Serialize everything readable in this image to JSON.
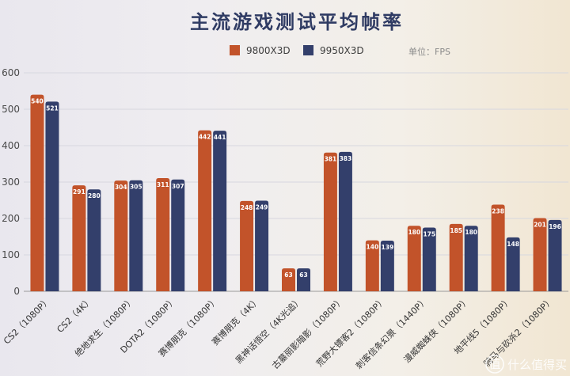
{
  "chart_data": {
    "type": "bar",
    "title": "主流游戏测试平均帧率",
    "unit_note": "单位：FPS",
    "ylim": [
      0,
      600
    ],
    "yticks": [
      0,
      100,
      200,
      300,
      400,
      500,
      600
    ],
    "grid": true,
    "legend_position": "top-center",
    "categories": [
      "CS2（1080P）",
      "CS2（4K）",
      "绝地求生（1080P）",
      "DOTA2（1080P）",
      "赛博朋克（1080P）",
      "赛博朋克（4K）",
      "黑神话悟空（4K光追）",
      "古墓丽影暗影（1080P）",
      "荒野大镖客2（1080P）",
      "刺客信条幻景（1440P）",
      "漫威蜘蛛侠（1080P）",
      "地平线5（1080P）",
      "骑马与砍杀2（1080P）"
    ],
    "series": [
      {
        "name": "9800X3D",
        "color": "#c2532a",
        "values": [
          540,
          291,
          304,
          311,
          442,
          248,
          63,
          381,
          140,
          180,
          185,
          238,
          201
        ]
      },
      {
        "name": "9950X3D",
        "color": "#333f6b",
        "values": [
          521,
          280,
          305,
          307,
          441,
          249,
          63,
          383,
          139,
          175,
          180,
          148,
          196
        ]
      }
    ]
  },
  "watermark": {
    "logo_text": "值",
    "text": "什么值得买"
  }
}
